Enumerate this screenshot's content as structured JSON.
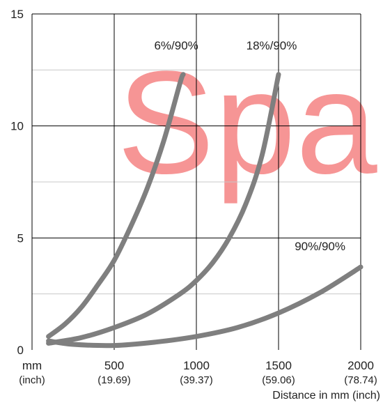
{
  "chart_data": {
    "type": "line",
    "x_unit_label": "mm",
    "x_unit_sub_label": "(inch)",
    "xlabel": "Distance in mm (inch)",
    "xlim": [
      0,
      2000
    ],
    "ylim": [
      0,
      15
    ],
    "x_ticks": [
      {
        "value": 500,
        "label": "500",
        "sub": "(19.69)"
      },
      {
        "value": 1000,
        "label": "1000",
        "sub": "(39.37)"
      },
      {
        "value": 1500,
        "label": "1500",
        "sub": "(59.06)"
      },
      {
        "value": 2000,
        "label": "2000",
        "sub": "(78.74)"
      }
    ],
    "y_ticks": [
      {
        "value": 0,
        "label": "0"
      },
      {
        "value": 5,
        "label": "5"
      },
      {
        "value": 10,
        "label": "10"
      },
      {
        "value": 15,
        "label": "15"
      }
    ],
    "y_minor_gridlines": [
      2.5,
      7.5,
      12.5
    ],
    "grid": true,
    "watermark": "Spa",
    "colors": {
      "curve": "#7f7f7f",
      "grid": "#000000",
      "minor_grid": "#c8c8c8",
      "watermark": "#f04040"
    },
    "series": [
      {
        "name": "6%/90%",
        "x": [
          100,
          200,
          300,
          400,
          500,
          600,
          700,
          800,
          900,
          920
        ],
        "y": [
          0.6,
          1.15,
          1.9,
          2.9,
          4.0,
          5.5,
          7.2,
          9.3,
          11.9,
          12.3
        ]
      },
      {
        "name": "18%/90%",
        "x": [
          100,
          300,
          500,
          700,
          900,
          1000,
          1100,
          1200,
          1300,
          1400,
          1500
        ],
        "y": [
          0.3,
          0.55,
          1.0,
          1.6,
          2.5,
          3.1,
          3.9,
          5.0,
          6.5,
          8.7,
          12.3
        ]
      },
      {
        "name": "90%/90%",
        "x": [
          100,
          250,
          500,
          750,
          1000,
          1250,
          1500,
          1750,
          2000
        ],
        "y": [
          0.4,
          0.25,
          0.2,
          0.35,
          0.6,
          1.0,
          1.65,
          2.55,
          3.7
        ]
      }
    ]
  }
}
